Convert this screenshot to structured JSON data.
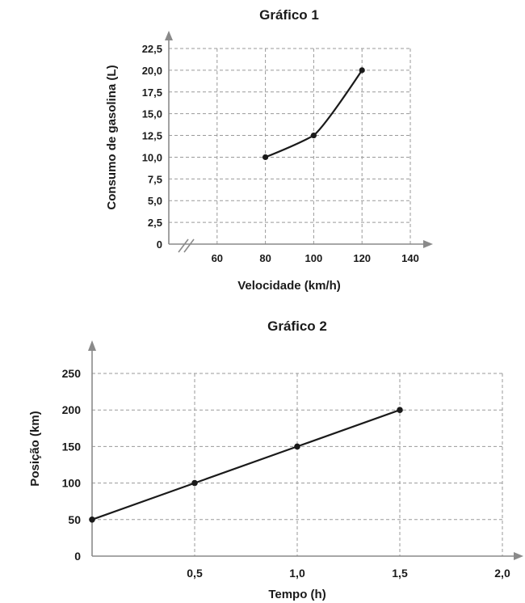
{
  "chart_data": [
    {
      "type": "line",
      "title": "Gráfico 1",
      "xlabel": "Velocidade (km/h)",
      "ylabel": "Consumo de gasolina (L)",
      "x_ticks": [
        "60",
        "80",
        "100",
        "120",
        "140"
      ],
      "y_ticks": [
        "0",
        "2,5",
        "5,0",
        "7,5",
        "10,0",
        "12,5",
        "15,0",
        "17,5",
        "20,0",
        "22,5"
      ],
      "xlim": [
        40,
        140
      ],
      "ylim": [
        0,
        22.5
      ],
      "axis_break": "x",
      "grid": true,
      "series": [
        {
          "x": [
            80,
            100,
            120
          ],
          "y": [
            10.0,
            12.5,
            20.0
          ]
        }
      ]
    },
    {
      "type": "line",
      "title": "Gráfico 2",
      "xlabel": "Tempo (h)",
      "ylabel": "Posição (km)",
      "x_ticks": [
        "0,5",
        "1,0",
        "1,5",
        "2,0"
      ],
      "y_ticks": [
        "0",
        "50",
        "100",
        "150",
        "200",
        "250"
      ],
      "xlim": [
        0,
        2.0
      ],
      "ylim": [
        0,
        250
      ],
      "grid": true,
      "series": [
        {
          "x": [
            0,
            0.5,
            1.0,
            1.5
          ],
          "y": [
            50,
            100,
            150,
            200
          ]
        }
      ]
    }
  ]
}
